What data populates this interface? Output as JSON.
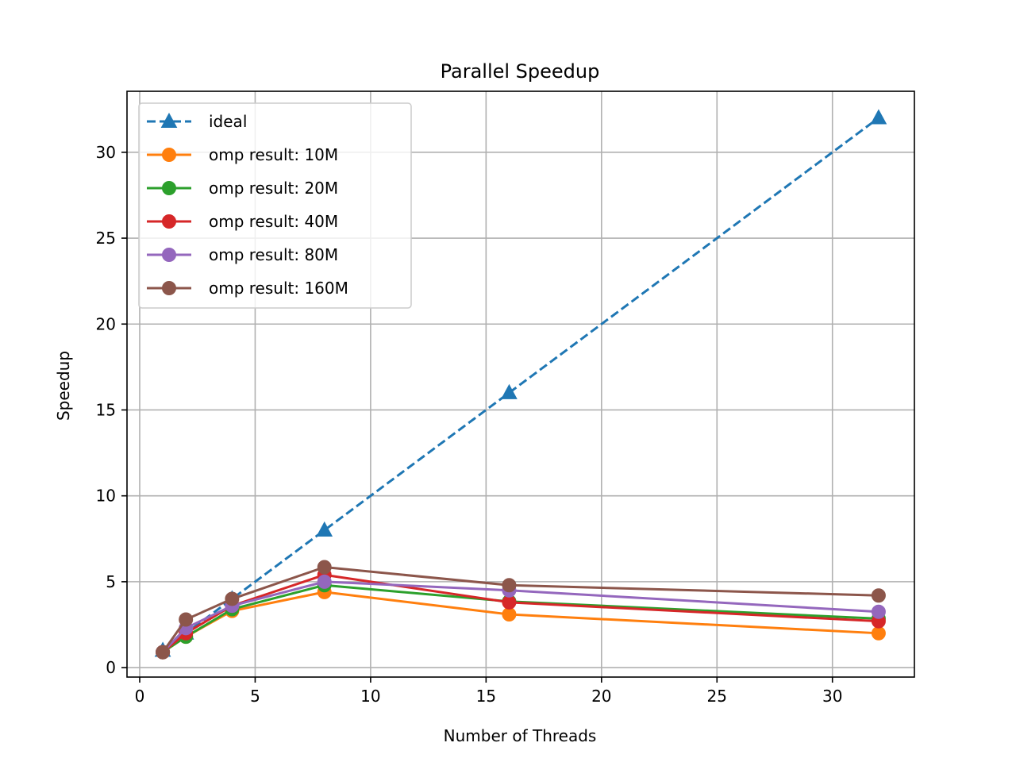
{
  "chart_data": {
    "type": "line",
    "title": "Parallel Speedup",
    "xlabel": "Number of Threads",
    "ylabel": "Speedup",
    "xlim": [
      -0.55,
      33.55
    ],
    "ylim": [
      -0.55,
      33.55
    ],
    "xticks": [
      0,
      5,
      10,
      15,
      20,
      25,
      30
    ],
    "yticks": [
      0,
      5,
      10,
      15,
      20,
      25,
      30
    ],
    "grid": true,
    "legend_position": "top-left",
    "x": [
      1,
      2,
      4,
      8,
      16,
      32
    ],
    "series": [
      {
        "name": "ideal",
        "color": "#1f77b4",
        "marker": "triangle",
        "dashed": true,
        "values": [
          1,
          2,
          4,
          8,
          16,
          32
        ]
      },
      {
        "name": "omp result: 10M",
        "color": "#ff7f0e",
        "marker": "circle",
        "dashed": false,
        "values": [
          0.9,
          1.8,
          3.3,
          4.4,
          3.1,
          2.0
        ]
      },
      {
        "name": "omp result: 20M",
        "color": "#2ca02c",
        "marker": "circle",
        "dashed": false,
        "values": [
          0.9,
          1.8,
          3.4,
          4.8,
          3.85,
          2.85
        ]
      },
      {
        "name": "omp result: 40M",
        "color": "#d62728",
        "marker": "circle",
        "dashed": false,
        "values": [
          0.9,
          2.0,
          3.6,
          5.4,
          3.8,
          2.7
        ]
      },
      {
        "name": "omp result: 80M",
        "color": "#9467bd",
        "marker": "circle",
        "dashed": false,
        "values": [
          0.9,
          2.3,
          3.6,
          5.0,
          4.5,
          3.25
        ]
      },
      {
        "name": "omp result: 160M",
        "color": "#8c564b",
        "marker": "circle",
        "dashed": false,
        "values": [
          0.9,
          2.8,
          4.0,
          5.85,
          4.8,
          4.2
        ]
      }
    ]
  }
}
